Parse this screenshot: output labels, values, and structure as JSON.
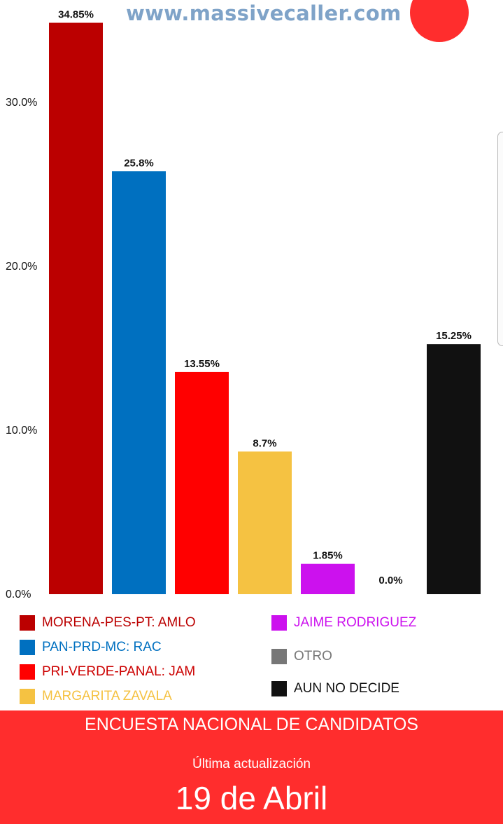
{
  "header": {
    "url": "www.massivecaller.com"
  },
  "chart_data": {
    "type": "bar",
    "categories": [
      "MORENA-PES-PT: AMLO",
      "PAN-PRD-MC: RAC",
      "PRI-VERDE-PANAL: JAM",
      "MARGARITA ZAVALA",
      "JAIME RODRIGUEZ",
      "OTRO",
      "AUN NO DECIDE"
    ],
    "values": [
      34.85,
      25.8,
      13.55,
      8.7,
      1.85,
      0.0,
      15.25
    ],
    "value_labels": [
      "34.85%",
      "25.8%",
      "13.55%",
      "8.7%",
      "1.85%",
      "0.0%",
      "15.25%"
    ],
    "colors": [
      "#bb0000",
      "#0070c0",
      "#ff0000",
      "#f5c242",
      "#cc11ee",
      "#777777",
      "#111111"
    ],
    "yticks": [
      0,
      10,
      20,
      30
    ],
    "ytick_labels": [
      "0.0%",
      "10.0%",
      "20.0%",
      "30.0%"
    ],
    "ylim": [
      0,
      35
    ],
    "grid": false,
    "legend_position": "bottom"
  },
  "legend": {
    "items": [
      {
        "label": "MORENA-PES-PT: AMLO",
        "color": "#bb0000",
        "text_color": "#bb0000"
      },
      {
        "label": "PAN-PRD-MC: RAC",
        "color": "#0070c0",
        "text_color": "#0070c0"
      },
      {
        "label": "PRI-VERDE-PANAL: JAM",
        "color": "#ff0000",
        "text_color": "#cc0000"
      },
      {
        "label": "MARGARITA ZAVALA",
        "color": "#f5c242",
        "text_color": "#f5c242"
      },
      {
        "label": "JAIME RODRIGUEZ",
        "color": "#cc11ee",
        "text_color": "#cc11ee"
      },
      {
        "label": "OTRO",
        "color": "#777777",
        "text_color": "#777777"
      },
      {
        "label": "AUN NO DECIDE",
        "color": "#111111",
        "text_color": "#111111"
      }
    ]
  },
  "footer": {
    "title": "ENCUESTA NACIONAL DE CANDIDATOS",
    "subtitle": "Última actualización",
    "date": "19 de Abril"
  }
}
